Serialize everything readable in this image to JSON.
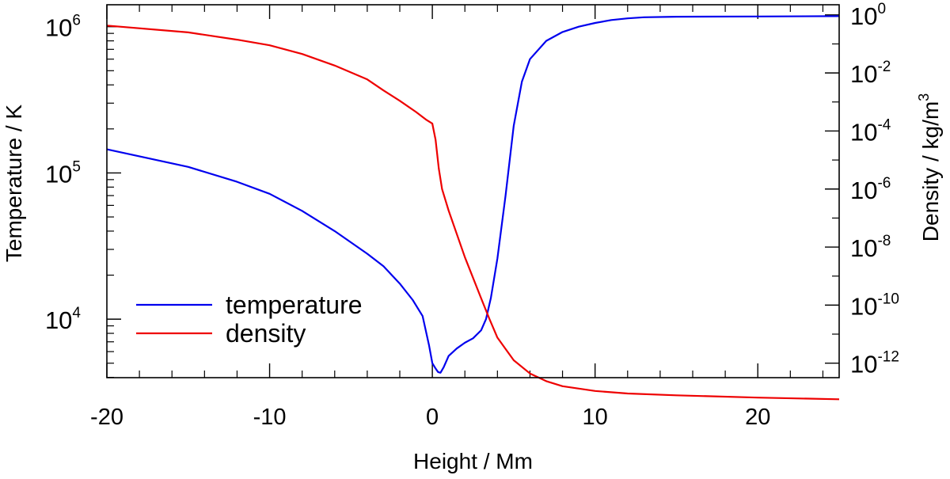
{
  "chart_data": {
    "type": "line",
    "title": "",
    "xlabel": "Height / Mm",
    "ylabel_left": "Temperature / K",
    "ylabel_right": "Density / kg/m",
    "ylabel_right_superscript": "3",
    "xlim": [
      -20,
      25
    ],
    "ylim_left_log10": [
      3.6,
      6.15
    ],
    "ylim_right_log10": [
      -12.5,
      0.35
    ],
    "x_ticks": [
      {
        "value": -20,
        "label": "-20"
      },
      {
        "value": -10,
        "label": "-10"
      },
      {
        "value": 0,
        "label": "0"
      },
      {
        "value": 10,
        "label": "10"
      },
      {
        "value": 20,
        "label": "20"
      }
    ],
    "left_ticks": [
      {
        "exp": 4,
        "base": "10",
        "sup": "4"
      },
      {
        "exp": 5,
        "base": "10",
        "sup": "5"
      },
      {
        "exp": 6,
        "base": "10",
        "sup": "6"
      }
    ],
    "right_ticks": [
      {
        "exp": 0,
        "base": "10",
        "sup": "0"
      },
      {
        "exp": -2,
        "base": "10",
        "sup": "-2"
      },
      {
        "exp": -4,
        "base": "10",
        "sup": "-4"
      },
      {
        "exp": -6,
        "base": "10",
        "sup": "-6"
      },
      {
        "exp": -8,
        "base": "10",
        "sup": "-8"
      },
      {
        "exp": -10,
        "base": "10",
        "sup": "-10"
      },
      {
        "exp": -12,
        "base": "10",
        "sup": "-12"
      }
    ],
    "legend": {
      "position": "bottom-left"
    },
    "series": [
      {
        "name": "temperature",
        "color": "#0000ee",
        "axis": "left",
        "x": [
          -20,
          -15,
          -12,
          -10,
          -8,
          -6,
          -4,
          -3,
          -2,
          -1.2,
          -0.6,
          -0.2,
          0,
          0.2,
          0.35,
          0.5,
          0.7,
          1,
          1.5,
          2,
          2.5,
          3,
          3.3,
          3.6,
          4,
          4.5,
          5,
          5.5,
          6,
          7,
          8,
          9,
          10,
          11,
          12,
          13,
          15,
          20,
          25
        ],
        "y": [
          145000,
          110000,
          87000,
          72000,
          55000,
          40000,
          28000,
          23000,
          17500,
          13500,
          10500,
          6600,
          5000,
          4600,
          4350,
          4300,
          4700,
          5600,
          6300,
          6900,
          7400,
          8400,
          10000,
          14000,
          26000,
          70000,
          210000,
          420000,
          600000,
          800000,
          920000,
          1000000,
          1060000,
          1110000,
          1140000,
          1160000,
          1170000,
          1175000,
          1180000
        ]
      },
      {
        "name": "density",
        "color": "#ee0000",
        "axis": "right",
        "x": [
          -20,
          -15,
          -12,
          -10,
          -8,
          -6,
          -4,
          -3,
          -2,
          -1,
          -0.4,
          0,
          0.2,
          0.4,
          0.6,
          1,
          2,
          3,
          3.5,
          4,
          5,
          6,
          7,
          8,
          10,
          12,
          15,
          20,
          25
        ],
        "y": [
          0.43,
          0.25,
          0.14,
          0.09,
          0.045,
          0.018,
          0.006,
          0.0025,
          0.0011,
          0.00045,
          0.00025,
          0.00018,
          5e-05,
          5e-06,
          1e-06,
          1.8e-07,
          4.5e-09,
          1.7e-10,
          3.4e-11,
          7.6e-12,
          1.26e-12,
          4.4e-13,
          2.4e-13,
          1.6e-13,
          1.1e-13,
          9e-14,
          7.8e-14,
          6.5e-14,
          5.7e-14
        ]
      }
    ]
  }
}
